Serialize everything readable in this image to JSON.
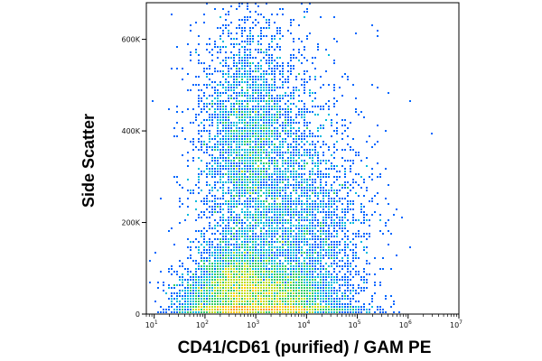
{
  "chart_data": {
    "type": "scatter",
    "style": "flow-cytometry density dot plot",
    "title": "",
    "xlabel": "CD41/CD61 (purified) / GAM PE",
    "ylabel": "Side Scatter",
    "x_scale": "log",
    "xlim": [
      7,
      10000000
    ],
    "ylim": [
      0,
      680000
    ],
    "x_ticks": [
      {
        "value": 10,
        "label": "10",
        "exp": "1"
      },
      {
        "value": 100,
        "label": "10",
        "exp": "2"
      },
      {
        "value": 1000,
        "label": "10",
        "exp": "3"
      },
      {
        "value": 10000,
        "label": "10",
        "exp": "4"
      },
      {
        "value": 100000,
        "label": "10",
        "exp": "5"
      },
      {
        "value": 1000000,
        "label": "10",
        "exp": "6"
      },
      {
        "value": 10000000,
        "label": "10",
        "exp": "7"
      }
    ],
    "y_ticks": [
      {
        "value": 0,
        "label": "0"
      },
      {
        "value": 200000,
        "label": "200K"
      },
      {
        "value": 400000,
        "label": "400K"
      },
      {
        "value": 600000,
        "label": "600K"
      }
    ],
    "colormap": [
      "#0000cc",
      "#0066ff",
      "#00bbdd",
      "#33cc66",
      "#bbdd22",
      "#ffcc00",
      "#ff9900"
    ],
    "populations": [
      {
        "x_log_center": 2.55,
        "y_center": 35000,
        "x_log_sd": 0.55,
        "y_sd": 40000,
        "weight": 4200
      },
      {
        "x_log_center": 2.65,
        "y_center": 90000,
        "x_log_sd": 0.35,
        "y_sd": 35000,
        "weight": 1600
      },
      {
        "x_log_center": 2.85,
        "y_center": 380000,
        "x_log_sd": 0.45,
        "y_sd": 130000,
        "weight": 3800
      },
      {
        "x_log_center": 3.55,
        "y_center": 40000,
        "x_log_sd": 0.5,
        "y_sd": 30000,
        "weight": 2600
      },
      {
        "x_log_center": 3.4,
        "y_center": 250000,
        "x_log_sd": 0.8,
        "y_sd": 180000,
        "weight": 5200
      },
      {
        "x_log_center": 4.1,
        "y_center": 120000,
        "x_log_sd": 0.6,
        "y_sd": 120000,
        "weight": 1800
      }
    ]
  }
}
